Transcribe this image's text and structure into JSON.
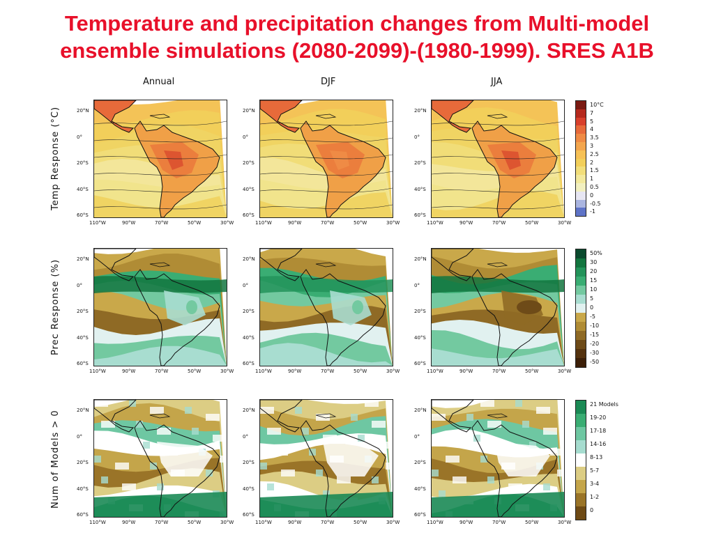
{
  "title_line1": "Temperature and precipitation changes from Multi-model",
  "title_line2": "ensemble simulations (2080-2099)-(1980-1999). SRES A1B",
  "columns": [
    "Annual",
    "DJF",
    "JJA"
  ],
  "rows": [
    "Temp Response (°C)",
    "Prec Response (%)",
    "Num of Models > 0"
  ],
  "lat_ticks": [
    "20°N",
    "0°",
    "20°S",
    "40°S",
    "60°S"
  ],
  "lon_ticks": [
    "110°W",
    "90°W",
    "70°W",
    "50°W",
    "30°W"
  ],
  "temp_legend": {
    "labels": [
      "10°C",
      "7",
      "5",
      "4",
      "3.5",
      "3",
      "2.5",
      "2",
      "1.5",
      "1",
      "0.5",
      "0",
      "-0.5",
      "-1"
    ],
    "colors": [
      "#7a1a12",
      "#b52a1e",
      "#d8402c",
      "#e76a3a",
      "#ef8b45",
      "#f3a64e",
      "#f6c156",
      "#f2cf5a",
      "#f2de7a",
      "#f3e99d",
      "#f2f0c0",
      "#e7e6f2",
      "#aab5e0",
      "#5e73c7"
    ]
  },
  "prec_legend": {
    "labels": [
      "50%",
      "30",
      "20",
      "15",
      "10",
      "5",
      "0",
      "-5",
      "-10",
      "-15",
      "-20",
      "-30",
      "-50"
    ],
    "colors": [
      "#0b4a2e",
      "#13753f",
      "#23935a",
      "#3aad73",
      "#73c9a0",
      "#a8ddd0",
      "#e1f1f0",
      "#c9a84a",
      "#b08c35",
      "#8f6a25",
      "#6e4b18",
      "#55330f",
      "#3c1f08"
    ]
  },
  "models_legend": {
    "labels": [
      "21 Models",
      "19-20",
      "17-18",
      "14-16",
      "8-13",
      "5-7",
      "3-4",
      "1-2",
      "0"
    ],
    "colors": [
      "#1b8a55",
      "#3aad73",
      "#6ec7a2",
      "#a6dccf",
      "#ffffff",
      "#dccd84",
      "#c4a54a",
      "#9a7428",
      "#6e4a15"
    ]
  }
}
